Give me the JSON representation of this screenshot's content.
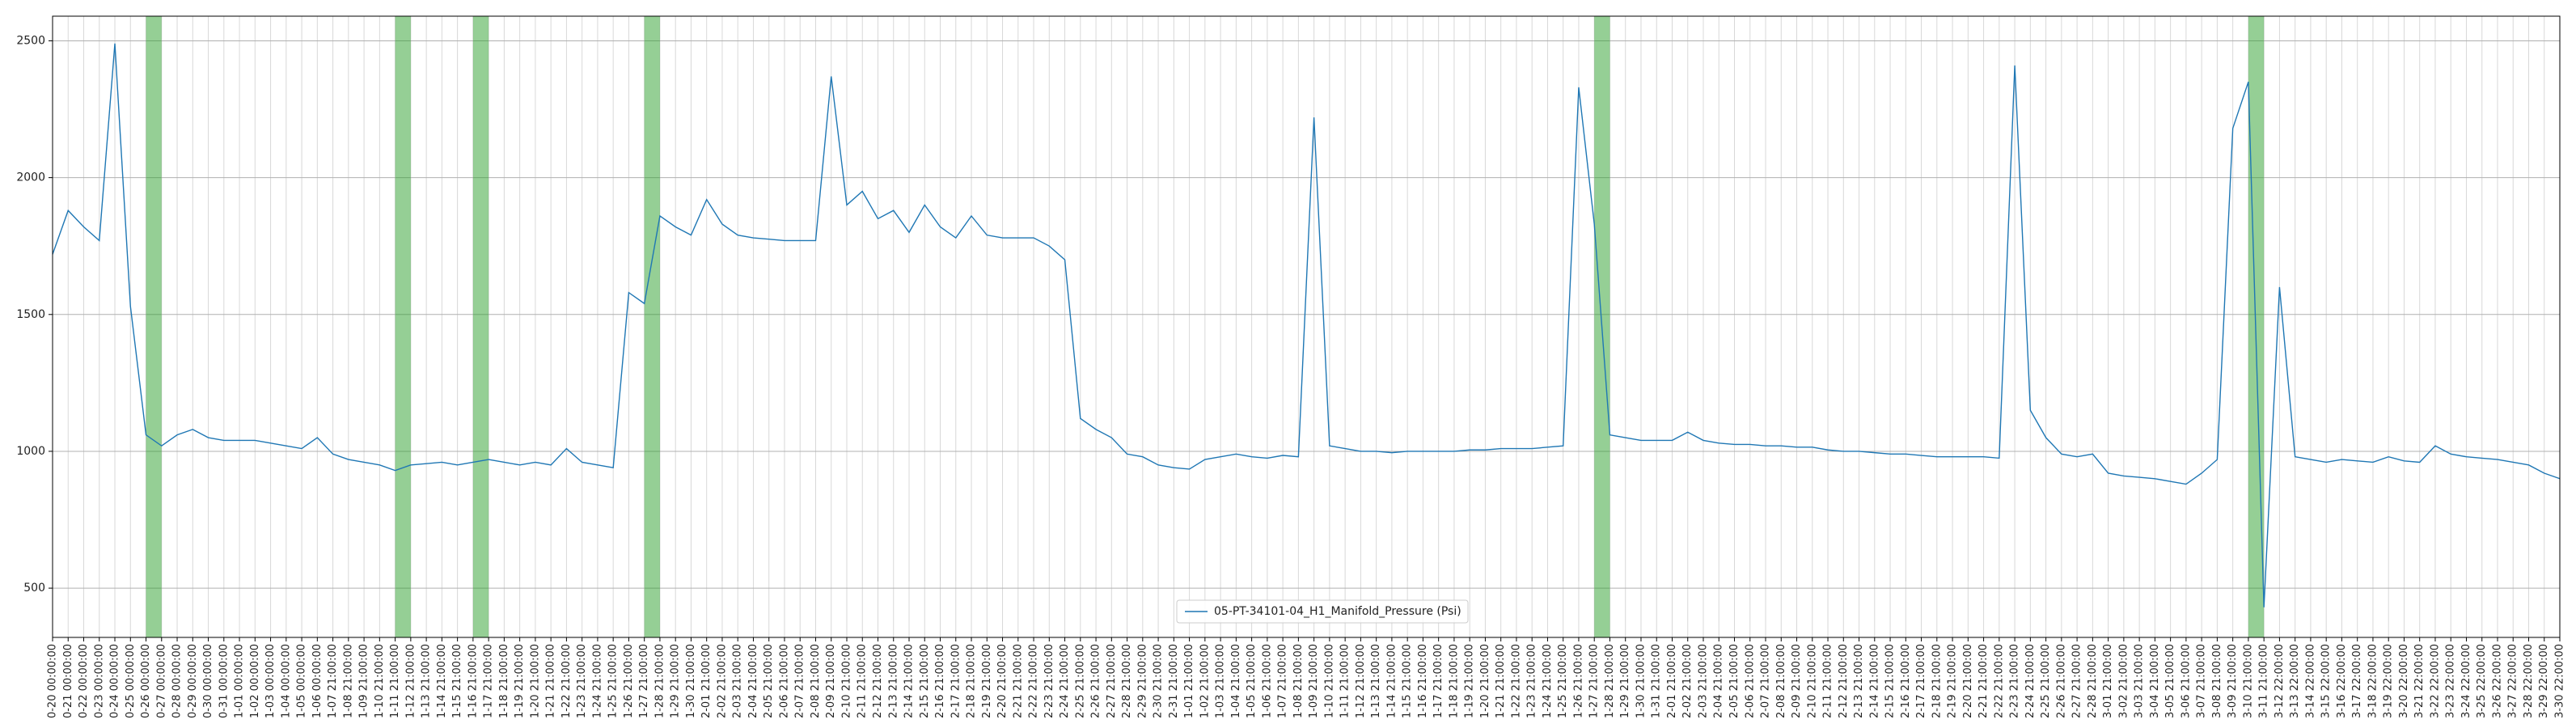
{
  "chart_data": {
    "type": "line",
    "categories": [
      "0-20 00:00:00",
      "0-21 00:00:00",
      "0-22 00:00:00",
      "0-23 00:00:00",
      "0-24 00:00:00",
      "0-25 00:00:00",
      "0-26 00:00:00",
      "0-27 00:00:00",
      "0-28 00:00:00",
      "0-29 00:00:00",
      "0-30 00:00:00",
      "0-31 00:00:00",
      "1-01 00:00:00",
      "1-02 00:00:00",
      "1-03 00:00:00",
      "1-04 00:00:00",
      "1-05 00:00:00",
      "1-06 00:00:00",
      "1-07 21:00:00",
      "1-08 21:00:00",
      "1-09 21:00:00",
      "1-10 21:00:00",
      "1-11 21:00:00",
      "1-12 21:00:00",
      "1-13 21:00:00",
      "1-14 21:00:00",
      "1-15 21:00:00",
      "1-16 21:00:00",
      "1-17 21:00:00",
      "1-18 21:00:00",
      "1-19 21:00:00",
      "1-20 21:00:00",
      "1-21 21:00:00",
      "1-22 21:00:00",
      "1-23 21:00:00",
      "1-24 21:00:00",
      "1-25 21:00:00",
      "1-26 21:00:00",
      "1-27 21:00:00",
      "1-28 21:00:00",
      "1-29 21:00:00",
      "1-30 21:00:00",
      "2-01 21:00:00",
      "2-02 21:00:00",
      "2-03 21:00:00",
      "2-04 21:00:00",
      "2-05 21:00:00",
      "2-06 21:00:00",
      "2-07 21:00:00",
      "2-08 21:00:00",
      "2-09 21:00:00",
      "2-10 21:00:00",
      "2-11 21:00:00",
      "2-12 21:00:00",
      "2-13 21:00:00",
      "2-14 21:00:00",
      "2-15 21:00:00",
      "2-16 21:00:00",
      "2-17 21:00:00",
      "2-18 21:00:00",
      "2-19 21:00:00",
      "2-20 21:00:00",
      "2-21 21:00:00",
      "2-22 21:00:00",
      "2-23 21:00:00",
      "2-24 21:00:00",
      "2-25 21:00:00",
      "2-26 21:00:00",
      "2-27 21:00:00",
      "2-28 21:00:00",
      "2-29 21:00:00",
      "2-30 21:00:00",
      "2-31 21:00:00",
      "1-01 21:00:00",
      "1-02 21:00:00",
      "1-03 21:00:00",
      "1-04 21:00:00",
      "1-05 21:00:00",
      "1-06 21:00:00",
      "1-07 21:00:00",
      "1-08 21:00:00",
      "1-09 21:00:00",
      "1-10 21:00:00",
      "1-11 21:00:00",
      "1-12 21:00:00",
      "1-13 21:00:00",
      "1-14 21:00:00",
      "1-15 21:00:00",
      "1-16 21:00:00",
      "1-17 21:00:00",
      "1-18 21:00:00",
      "1-19 21:00:00",
      "1-20 21:00:00",
      "1-21 21:00:00",
      "1-22 21:00:00",
      "1-23 21:00:00",
      "1-24 21:00:00",
      "1-25 21:00:00",
      "1-26 21:00:00",
      "1-27 21:00:00",
      "1-28 21:00:00",
      "1-29 21:00:00",
      "1-30 21:00:00",
      "1-31 21:00:00",
      "2-01 21:00:00",
      "2-02 21:00:00",
      "2-03 21:00:00",
      "2-04 21:00:00",
      "2-05 21:00:00",
      "2-06 21:00:00",
      "2-07 21:00:00",
      "2-08 21:00:00",
      "2-09 21:00:00",
      "2-10 21:00:00",
      "2-11 21:00:00",
      "2-12 21:00:00",
      "2-13 21:00:00",
      "2-14 21:00:00",
      "2-15 21:00:00",
      "2-16 21:00:00",
      "2-17 21:00:00",
      "2-18 21:00:00",
      "2-19 21:00:00",
      "2-20 21:00:00",
      "2-21 21:00:00",
      "2-22 21:00:00",
      "2-23 21:00:00",
      "2-24 21:00:00",
      "2-25 21:00:00",
      "2-26 21:00:00",
      "2-27 21:00:00",
      "2-28 21:00:00",
      "3-01 21:00:00",
      "3-02 21:00:00",
      "3-03 21:00:00",
      "3-04 21:00:00",
      "3-05 21:00:00",
      "3-06 21:00:00",
      "3-07 21:00:00",
      "3-08 21:00:00",
      "3-09 21:00:00",
      "3-10 21:00:00",
      "3-11 21:00:00",
      "3-12 22:00:00",
      "3-13 22:00:00",
      "3-14 22:00:00",
      "3-15 22:00:00",
      "3-16 22:00:00",
      "3-17 22:00:00",
      "3-18 22:00:00",
      "3-19 22:00:00",
      "3-20 22:00:00",
      "3-21 22:00:00",
      "3-22 22:00:00",
      "3-23 22:00:00",
      "3-24 22:00:00",
      "3-25 22:00:00",
      "3-26 22:00:00",
      "3-27 22:00:00",
      "3-28 22:00:00",
      "3-29 22:00:00",
      "3-30 22:00:00"
    ],
    "series": [
      {
        "name": "05-PT-34101-04_H1_Manifold_Pressure (Psi)",
        "color": "#1f77b4",
        "values": [
          1720,
          1880,
          1820,
          1770,
          2490,
          1530,
          1060,
          1020,
          1060,
          1080,
          1050,
          1040,
          1040,
          1040,
          1030,
          1020,
          1010,
          1050,
          990,
          970,
          960,
          950,
          930,
          950,
          955,
          960,
          950,
          960,
          970,
          960,
          950,
          960,
          950,
          1010,
          960,
          950,
          940,
          1580,
          1540,
          1860,
          1820,
          1790,
          1920,
          1830,
          1790,
          1780,
          1775,
          1770,
          1770,
          1770,
          2370,
          1900,
          1950,
          1850,
          1880,
          1800,
          1900,
          1820,
          1780,
          1860,
          1790,
          1780,
          1780,
          1780,
          1750,
          1700,
          1120,
          1080,
          1050,
          990,
          980,
          950,
          940,
          935,
          970,
          980,
          990,
          980,
          975,
          985,
          980,
          2220,
          1020,
          1010,
          1000,
          1000,
          995,
          1000,
          1000,
          1000,
          1000,
          1005,
          1005,
          1010,
          1010,
          1010,
          1015,
          1020,
          2330,
          1830,
          1060,
          1050,
          1040,
          1040,
          1040,
          1070,
          1040,
          1030,
          1025,
          1025,
          1020,
          1020,
          1015,
          1015,
          1005,
          1000,
          1000,
          995,
          990,
          990,
          985,
          980,
          980,
          980,
          980,
          975,
          2410,
          1150,
          1050,
          990,
          980,
          990,
          920,
          910,
          905,
          900,
          890,
          880,
          920,
          970,
          2180,
          2350,
          430,
          1600,
          980,
          970,
          960,
          970,
          965,
          960,
          980,
          965,
          960,
          1020,
          990,
          980,
          975,
          970,
          960,
          950,
          920,
          900
        ]
      }
    ],
    "highlight_spans": [
      [
        6,
        7
      ],
      [
        22,
        23
      ],
      [
        27,
        28
      ],
      [
        38,
        39
      ],
      [
        99,
        100
      ],
      [
        141,
        142
      ]
    ],
    "highlight_color": "#2ca02c",
    "ylim": [
      320,
      2590
    ],
    "yticks": [
      500,
      1000,
      1500,
      2000,
      2500
    ],
    "grid": true,
    "legend": "lower center"
  }
}
